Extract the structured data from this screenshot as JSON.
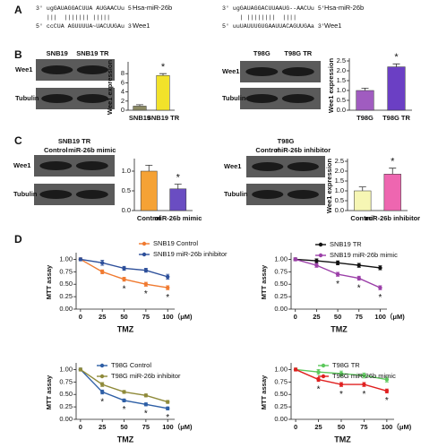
{
  "panel_labels": [
    "A",
    "B",
    "C",
    "D"
  ],
  "alignments": [
    {
      "lines": [
        "3' ugGAUAGGACUUA AUGAACUu 5'",
        "   |||  ||||||| |||||",
        "5' ccCUA AGUUUUA~UACUUGAu 3'"
      ],
      "names": [
        "Hsa-miR-26b",
        "Wee1"
      ]
    },
    {
      "lines": [
        "3' ugGAUAGGACUUAAUG--AACUu 5'",
        "     | ||||||||  ||||",
        "5' uuUAUUUGUGAAUUACAGUUGAa 3'"
      ],
      "names": [
        "Hsa-miR-26b",
        "Wee1"
      ]
    }
  ],
  "blots": [
    {
      "lanes": [
        "SNB19",
        "SNB19 TR"
      ],
      "rows": [
        "Wee1",
        "Tubulin"
      ]
    },
    {
      "lanes": [
        "T98G",
        "T98G TR"
      ],
      "rows": [
        "Wee1",
        "Tubulin"
      ]
    },
    {
      "title": "SNB19 TR",
      "lanes": [
        "Control",
        "miR-26b mimic"
      ],
      "rows": [
        "Wee1",
        "Tubulin"
      ]
    },
    {
      "title": "T98G",
      "lanes": [
        "Control",
        "miR-26b inhibitor"
      ],
      "rows": [
        "Wee1",
        "Tubulin"
      ]
    }
  ],
  "chart_data": [
    {
      "type": "bar",
      "ylabel": "Wee1 expression",
      "categories": [
        "SNB19",
        "SNB19 TR"
      ],
      "values": [
        0.9,
        7.6
      ],
      "errors": [
        0.3,
        0.4
      ],
      "colors": [
        "#8c8a64",
        "#f2e22a"
      ],
      "ylim": [
        0,
        10
      ],
      "yticks": [
        0,
        2,
        4,
        6,
        8
      ],
      "annotations": [
        {
          "text": "*",
          "category": "SNB19 TR"
        }
      ]
    },
    {
      "type": "bar",
      "ylabel": "Wee1 expression",
      "categories": [
        "T98G",
        "T98G TR"
      ],
      "values": [
        1.0,
        2.2
      ],
      "errors": [
        0.12,
        0.15
      ],
      "colors": [
        "#a05cc0",
        "#6b3fc4"
      ],
      "ylim": [
        0,
        2.5
      ],
      "yticks": [
        {
          "value": 0,
          "label": "0.0"
        },
        {
          "value": 0.5,
          "label": "0.5"
        },
        {
          "value": 1,
          "label": "1.0"
        },
        {
          "value": 1.5,
          "label": "1.5"
        },
        {
          "value": 2,
          "label": "2.0"
        },
        {
          "value": 2.5,
          "label": "2.5"
        }
      ],
      "annotations": [
        {
          "text": "*",
          "category": "T98G TR"
        }
      ]
    },
    {
      "type": "bar",
      "categories": [
        "Control",
        "miR-26b mimic"
      ],
      "values": [
        1.0,
        0.55
      ],
      "errors": [
        0.15,
        0.12
      ],
      "colors": [
        "#f5a235",
        "#6a4dc2"
      ],
      "ylim": [
        0,
        1.25
      ],
      "yticks": [
        {
          "value": 0,
          "label": "0.0"
        },
        {
          "value": 0.5,
          "label": "0.5"
        },
        {
          "value": 1,
          "label": "1.0"
        }
      ],
      "annotations": [
        {
          "text": "*",
          "category": "miR-26b mimic"
        }
      ]
    },
    {
      "type": "bar",
      "ylabel": "Wee1 expression",
      "categories": [
        "Control",
        "miR-26b inhibitor"
      ],
      "values": [
        1.0,
        1.85
      ],
      "errors": [
        0.2,
        0.3
      ],
      "colors": [
        "#f6f6b4",
        "#ee66b0"
      ],
      "ylim": [
        0,
        2.5
      ],
      "yticks": [
        {
          "value": 0,
          "label": "0.0"
        },
        {
          "value": 0.5,
          "label": "0.5"
        },
        {
          "value": 1,
          "label": "1.0"
        },
        {
          "value": 1.5,
          "label": "1.5"
        },
        {
          "value": 2,
          "label": "2.0"
        },
        {
          "value": 2.5,
          "label": "2.5"
        }
      ],
      "annotations": [
        {
          "text": "*",
          "category": "miR-26b inhibitor"
        }
      ]
    },
    {
      "type": "line",
      "xlabel": "TMZ",
      "ylabel": "MTT  assay",
      "x": [
        0,
        25,
        50,
        75,
        100
      ],
      "xlim": [
        -5,
        108
      ],
      "xticks": [
        0,
        25,
        50,
        75,
        {
          "value": 100,
          "label": "100（μM)"
        }
      ],
      "ylim": [
        0,
        1.08
      ],
      "yticks": [
        {
          "value": 0,
          "label": "0.00"
        },
        {
          "value": 0.25,
          "label": "0.25"
        },
        {
          "value": 0.5,
          "label": "0.50"
        },
        {
          "value": 0.75,
          "label": "0.75"
        },
        {
          "value": 1,
          "label": "1.00"
        }
      ],
      "series": [
        {
          "name": "SNB19 Control",
          "color": "#f07a30",
          "values": [
            1.0,
            0.75,
            0.6,
            0.5,
            0.43
          ],
          "errors": [
            0.03,
            0.04,
            0.04,
            0.04,
            0.04
          ]
        },
        {
          "name": "SNB19 miR-26b inhibitor",
          "color": "#2d4f9a",
          "values": [
            1.0,
            0.93,
            0.82,
            0.78,
            0.65
          ],
          "errors": [
            0.03,
            0.05,
            0.04,
            0.04,
            0.05
          ]
        }
      ],
      "annotations": [
        {
          "text": "*",
          "x": 50
        },
        {
          "text": "*",
          "x": 75
        },
        {
          "text": "*",
          "x": 100
        }
      ]
    },
    {
      "type": "line",
      "xlabel": "TMZ",
      "ylabel": "MTT  assay",
      "x": [
        0,
        25,
        50,
        75,
        100
      ],
      "xlim": [
        -5,
        108
      ],
      "xticks": [
        0,
        25,
        50,
        75,
        {
          "value": 100,
          "label": "100（μM)"
        }
      ],
      "ylim": [
        0,
        1.08
      ],
      "yticks": [
        {
          "value": 0,
          "label": "0.00"
        },
        {
          "value": 0.25,
          "label": "0.25"
        },
        {
          "value": 0.5,
          "label": "0.50"
        },
        {
          "value": 0.75,
          "label": "0.75"
        },
        {
          "value": 1,
          "label": "1.00"
        }
      ],
      "series": [
        {
          "name": "SNB19 TR",
          "color": "#111111",
          "values": [
            1.0,
            0.97,
            0.93,
            0.88,
            0.83
          ],
          "errors": [
            0.03,
            0.04,
            0.04,
            0.04,
            0.04
          ]
        },
        {
          "name": "SNB19 miR-26b mimic",
          "color": "#9b3fa8",
          "values": [
            1.0,
            0.88,
            0.7,
            0.62,
            0.43
          ],
          "errors": [
            0.03,
            0.04,
            0.04,
            0.04,
            0.04
          ]
        }
      ],
      "annotations": [
        {
          "text": "*",
          "x": 50
        },
        {
          "text": "*",
          "x": 75
        },
        {
          "text": "*",
          "x": 100
        }
      ]
    },
    {
      "type": "line",
      "xlabel": "TMZ",
      "ylabel": "MTT  assay",
      "x": [
        0,
        25,
        50,
        75,
        100
      ],
      "xlim": [
        -5,
        108
      ],
      "xticks": [
        0,
        25,
        50,
        75,
        {
          "value": 100,
          "label": "100（μM)"
        }
      ],
      "ylim": [
        0,
        1.08
      ],
      "yticks": [
        {
          "value": 0,
          "label": "0.00"
        },
        {
          "value": 0.25,
          "label": "0.25"
        },
        {
          "value": 0.5,
          "label": "0.50"
        },
        {
          "value": 0.75,
          "label": "0.75"
        },
        {
          "value": 1,
          "label": "1.00"
        }
      ],
      "series": [
        {
          "name": "T98G Control",
          "color": "#2e5fa6",
          "values": [
            1.0,
            0.55,
            0.38,
            0.3,
            0.22
          ],
          "errors": [
            0.03,
            0.04,
            0.03,
            0.03,
            0.03
          ]
        },
        {
          "name": "T98G miR-26b inhibitor",
          "color": "#8f8a3a",
          "values": [
            1.0,
            0.7,
            0.55,
            0.48,
            0.35
          ],
          "errors": [
            0.03,
            0.04,
            0.03,
            0.03,
            0.03
          ]
        }
      ],
      "annotations": [
        {
          "text": "*",
          "x": 25
        },
        {
          "text": "*",
          "x": 50
        },
        {
          "text": "*",
          "x": 75
        },
        {
          "text": "*",
          "x": 100
        }
      ]
    },
    {
      "type": "line",
      "xlabel": "TMZ",
      "ylabel": "MTT  assay",
      "x": [
        0,
        25,
        50,
        75,
        100
      ],
      "xlim": [
        -5,
        108
      ],
      "xticks": [
        0,
        25,
        50,
        75,
        {
          "value": 100,
          "label": "100（μM)"
        }
      ],
      "ylim": [
        0,
        1.08
      ],
      "yticks": [
        {
          "value": 0,
          "label": "0.00"
        },
        {
          "value": 0.25,
          "label": "0.25"
        },
        {
          "value": 0.5,
          "label": "0.50"
        },
        {
          "value": 0.75,
          "label": "0.75"
        },
        {
          "value": 1,
          "label": "1.00"
        }
      ],
      "series": [
        {
          "name": "T98G TR",
          "color": "#5cc85c",
          "values": [
            1.0,
            0.95,
            0.92,
            0.88,
            0.8
          ],
          "errors": [
            0.03,
            0.05,
            0.05,
            0.05,
            0.05
          ]
        },
        {
          "name": "T98G miR-26b mimic",
          "color": "#e02020",
          "values": [
            1.0,
            0.8,
            0.7,
            0.7,
            0.57
          ],
          "errors": [
            0.03,
            0.04,
            0.04,
            0.04,
            0.04
          ]
        }
      ],
      "annotations": [
        {
          "text": "*",
          "x": 25
        },
        {
          "text": "*",
          "x": 50
        },
        {
          "text": "*",
          "x": 75
        },
        {
          "text": "*",
          "x": 100
        }
      ]
    }
  ]
}
